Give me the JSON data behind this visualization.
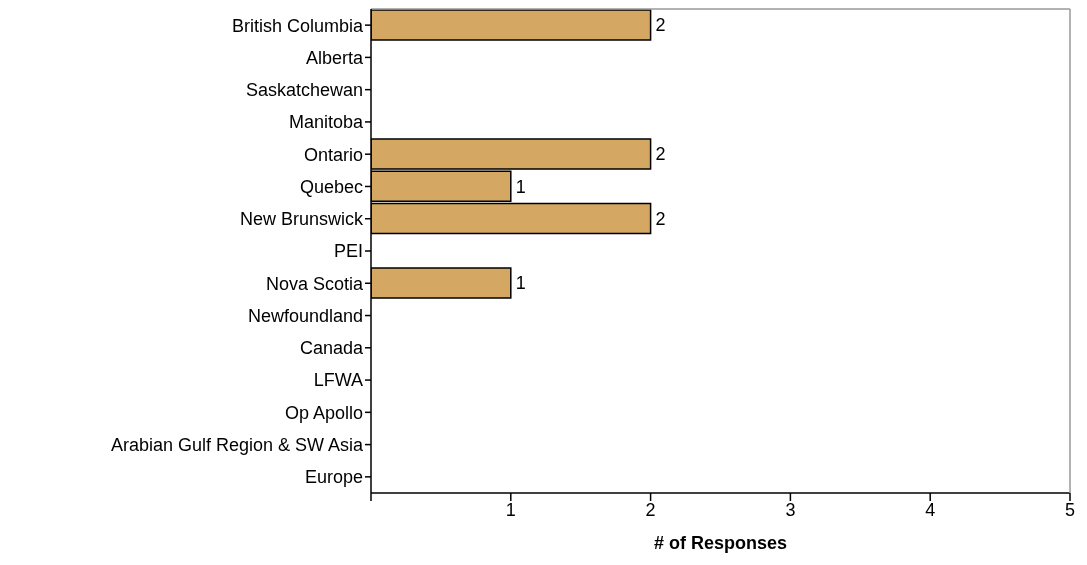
{
  "chart_data": {
    "type": "bar",
    "orientation": "horizontal",
    "xlabel": "# of Responses",
    "categories": [
      "British Columbia",
      "Alberta",
      "Saskatchewan",
      "Manitoba",
      "Ontario",
      "Quebec",
      "New Brunswick",
      "PEI",
      "Nova Scotia",
      "Newfoundland",
      "Canada",
      "LFWA",
      "Op Apollo",
      "Arabian Gulf Region & SW Asia",
      "Europe"
    ],
    "values": [
      2,
      0,
      0,
      0,
      2,
      1,
      2,
      0,
      1,
      0,
      0,
      0,
      0,
      0,
      0
    ],
    "value_labels": [
      "2",
      null,
      null,
      null,
      "2",
      "1",
      "2",
      null,
      "1",
      null,
      null,
      null,
      null,
      null,
      null
    ],
    "color": "#d4a862",
    "xlim": [
      0,
      5
    ],
    "xticks": [
      {
        "value": 0,
        "label": null
      },
      1,
      2,
      3,
      4,
      5
    ]
  }
}
